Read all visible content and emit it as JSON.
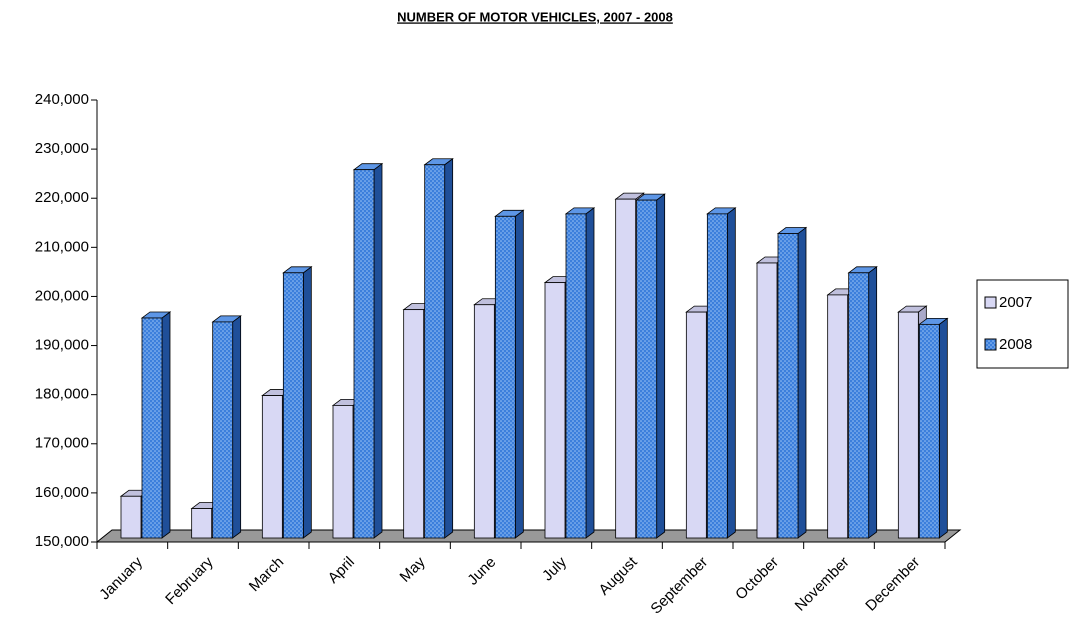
{
  "chart_data": {
    "type": "bar3d",
    "title": "NUMBER OF MOTOR VEHICLES, 2007 - 2008",
    "categories": [
      "January",
      "February",
      "March",
      "April",
      "May",
      "June",
      "July",
      "August",
      "September",
      "October",
      "November",
      "December"
    ],
    "series": [
      {
        "name": "2007",
        "color": "#d8d8f4",
        "values": [
          158500,
          156000,
          179000,
          177000,
          196500,
          197500,
          202000,
          219000,
          196000,
          206000,
          199500,
          196000
        ]
      },
      {
        "name": "2008",
        "color": "#3c7fdc",
        "values": [
          194800,
          194000,
          204000,
          225000,
          226000,
          215500,
          216000,
          218800,
          216000,
          212000,
          204000,
          193500
        ]
      }
    ],
    "ylim": [
      150000,
      240000
    ],
    "yticks": [
      {
        "value": 150000,
        "label": "150,000"
      },
      {
        "value": 160000,
        "label": "160,000"
      },
      {
        "value": 170000,
        "label": "170,000"
      },
      {
        "value": 180000,
        "label": "180,000"
      },
      {
        "value": 190000,
        "label": "190,000"
      },
      {
        "value": 200000,
        "label": "200,000"
      },
      {
        "value": 210000,
        "label": "210,000"
      },
      {
        "value": 220000,
        "label": "220,000"
      },
      {
        "value": 230000,
        "label": "230,000"
      },
      {
        "value": 240000,
        "label": "240,000"
      }
    ],
    "legend": "right"
  }
}
